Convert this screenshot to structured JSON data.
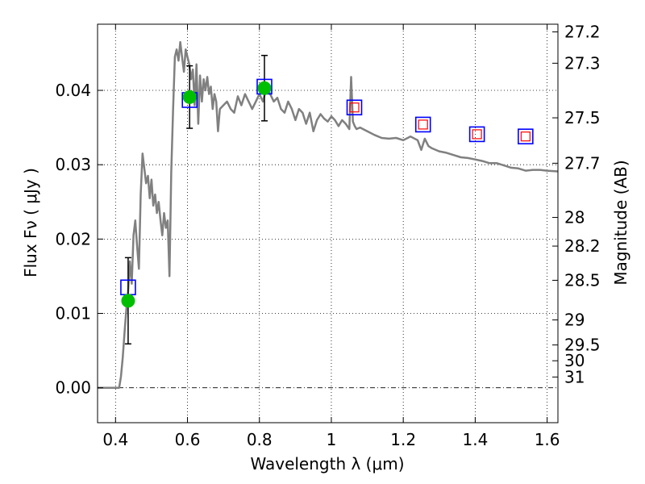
{
  "chart_data": {
    "type": "line",
    "title": "",
    "xlabel": "Wavelength  λ (μm)",
    "ylabel": "Flux  Fν  ( μJy )",
    "y2label": "Magnitude (AB)",
    "xlim": [
      0.35,
      1.63
    ],
    "ylim": [
      -0.0047,
      0.0489
    ],
    "grid": true,
    "x_ticks": [
      0.4,
      0.6,
      0.8,
      1.0,
      1.2,
      1.4,
      1.6
    ],
    "x_tick_labels": [
      "0.4",
      "0.6",
      "0.8",
      "1",
      "1.2",
      "1.4",
      "1.6"
    ],
    "y_ticks": [
      0.0,
      0.01,
      0.02,
      0.03,
      0.04
    ],
    "y_tick_labels": [
      "0.00",
      "0.01",
      "0.02",
      "0.03",
      "0.04"
    ],
    "mag_ticks": [
      27.2,
      27.3,
      27.5,
      27.7,
      28,
      28.2,
      28.5,
      29,
      29.5,
      30,
      31
    ],
    "mag_tick_labels": [
      "27.2",
      "27.3",
      "27.5",
      "27.7",
      "28",
      "28.2",
      "28.5",
      "29",
      "29.5",
      "30",
      "31"
    ],
    "series": [
      {
        "kind": "model_spectrum",
        "color": "#808080",
        "x": [
          0.35,
          0.4,
          0.41,
          0.415,
          0.42,
          0.425,
          0.43,
          0.435,
          0.44,
          0.445,
          0.45,
          0.455,
          0.46,
          0.465,
          0.47,
          0.475,
          0.48,
          0.485,
          0.49,
          0.495,
          0.5,
          0.505,
          0.51,
          0.515,
          0.52,
          0.525,
          0.53,
          0.535,
          0.54,
          0.545,
          0.55,
          0.555,
          0.56,
          0.565,
          0.57,
          0.575,
          0.58,
          0.585,
          0.59,
          0.595,
          0.6,
          0.605,
          0.61,
          0.615,
          0.62,
          0.625,
          0.63,
          0.635,
          0.64,
          0.645,
          0.65,
          0.655,
          0.66,
          0.665,
          0.67,
          0.675,
          0.68,
          0.685,
          0.69,
          0.7,
          0.71,
          0.72,
          0.73,
          0.74,
          0.75,
          0.76,
          0.77,
          0.78,
          0.79,
          0.8,
          0.81,
          0.82,
          0.83,
          0.84,
          0.85,
          0.86,
          0.87,
          0.88,
          0.89,
          0.9,
          0.91,
          0.92,
          0.93,
          0.94,
          0.95,
          0.96,
          0.97,
          0.98,
          0.99,
          1.0,
          1.01,
          1.02,
          1.03,
          1.04,
          1.05,
          1.055,
          1.06,
          1.065,
          1.07,
          1.08,
          1.1,
          1.12,
          1.14,
          1.16,
          1.18,
          1.2,
          1.22,
          1.24,
          1.25,
          1.26,
          1.27,
          1.28,
          1.3,
          1.32,
          1.34,
          1.36,
          1.38,
          1.4,
          1.42,
          1.44,
          1.46,
          1.48,
          1.5,
          1.52,
          1.54,
          1.56,
          1.58,
          1.6,
          1.63
        ],
        "y": [
          0.0,
          0.0,
          0.0,
          0.0015,
          0.004,
          0.0075,
          0.0105,
          0.013,
          0.017,
          0.014,
          0.0205,
          0.0225,
          0.019,
          0.016,
          0.026,
          0.0315,
          0.0295,
          0.0275,
          0.0285,
          0.0255,
          0.028,
          0.0245,
          0.026,
          0.0235,
          0.025,
          0.0225,
          0.0205,
          0.0235,
          0.0215,
          0.0225,
          0.015,
          0.029,
          0.0375,
          0.0445,
          0.0455,
          0.044,
          0.0465,
          0.0445,
          0.0425,
          0.0455,
          0.0445,
          0.0435,
          0.0415,
          0.0428,
          0.038,
          0.0435,
          0.0355,
          0.042,
          0.0385,
          0.0415,
          0.04,
          0.0418,
          0.0395,
          0.0405,
          0.0375,
          0.0395,
          0.0385,
          0.0345,
          0.0375,
          0.038,
          0.0385,
          0.0375,
          0.037,
          0.0392,
          0.038,
          0.0395,
          0.0385,
          0.0375,
          0.0385,
          0.0395,
          0.0385,
          0.0405,
          0.0395,
          0.0385,
          0.039,
          0.0375,
          0.037,
          0.0385,
          0.0375,
          0.036,
          0.0375,
          0.037,
          0.0355,
          0.037,
          0.0345,
          0.036,
          0.0368,
          0.0362,
          0.0358,
          0.0365,
          0.036,
          0.0352,
          0.036,
          0.0355,
          0.0348,
          0.0418,
          0.0358,
          0.0352,
          0.0348,
          0.035,
          0.0345,
          0.034,
          0.0336,
          0.0335,
          0.0336,
          0.0333,
          0.0338,
          0.0333,
          0.032,
          0.0335,
          0.0325,
          0.0322,
          0.0318,
          0.0316,
          0.0313,
          0.031,
          0.0309,
          0.0307,
          0.0305,
          0.0302,
          0.0302,
          0.0299,
          0.0296,
          0.0295,
          0.0292,
          0.0293,
          0.0293,
          0.0292,
          0.0291
        ]
      },
      {
        "kind": "observed_flux",
        "color": "#00bf00",
        "x": [
          0.435,
          0.606,
          0.814
        ],
        "y": [
          0.0117,
          0.0391,
          0.0403
        ],
        "yerr": [
          0.0058,
          0.0042,
          0.0044
        ]
      },
      {
        "kind": "model_photometry_blue_squares",
        "color": "#0000ff",
        "x": [
          0.435,
          0.606,
          0.814,
          1.064,
          1.255,
          1.405,
          1.54
        ],
        "y": [
          0.0135,
          0.0387,
          0.0405,
          0.0377,
          0.0354,
          0.0341,
          0.0338
        ]
      },
      {
        "kind": "model_photometry_red_squares",
        "color": "#ff0000",
        "x": [
          1.064,
          1.255,
          1.405,
          1.54
        ],
        "y": [
          0.0377,
          0.0354,
          0.0341,
          0.0338
        ]
      }
    ]
  }
}
